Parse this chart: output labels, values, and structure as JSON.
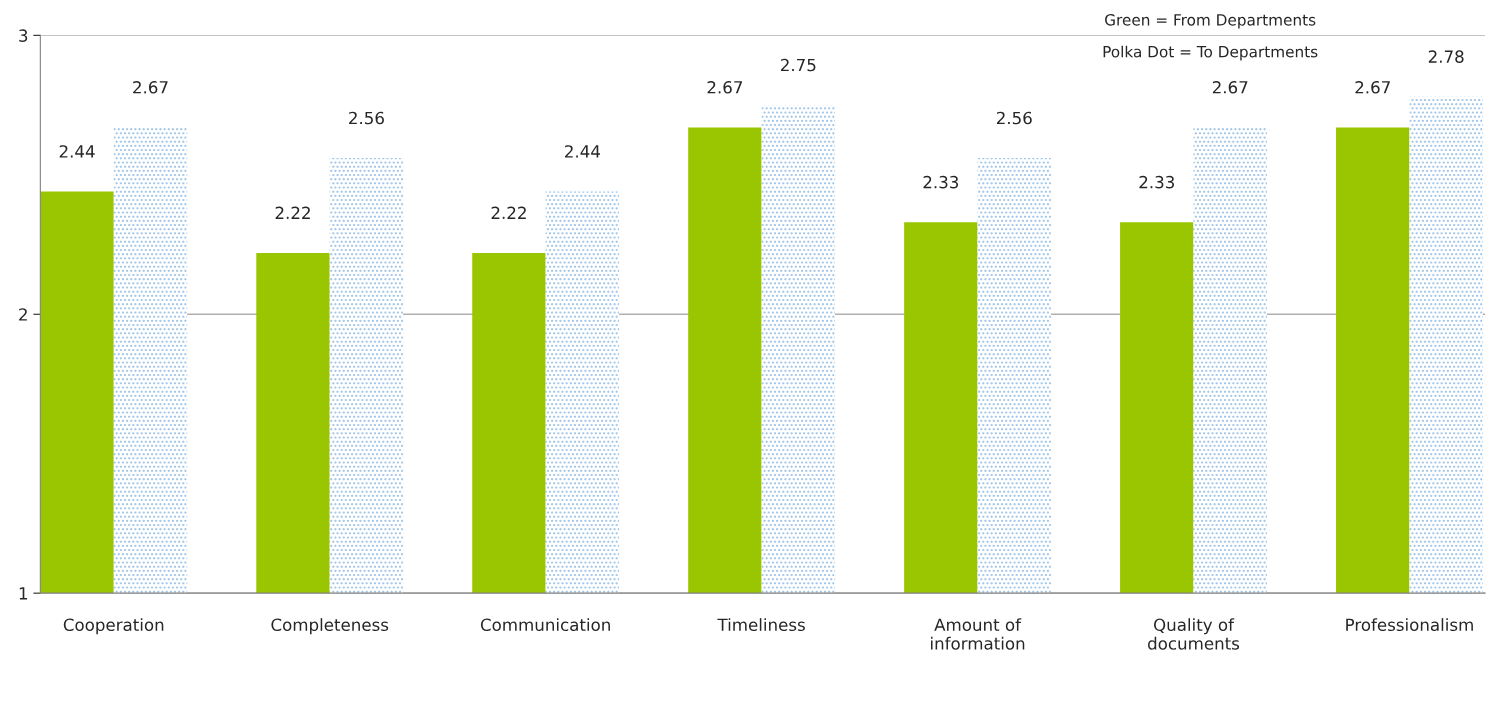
{
  "chart_data": {
    "type": "bar",
    "categories": [
      "Cooperation",
      "Completeness",
      "Communication",
      "Timeliness",
      "Amount of\ninformation",
      "Quality of\ndocuments",
      "Professionalism"
    ],
    "series": [
      {
        "color": "#99c600",
        "values": [
          2.44,
          2.22,
          2.22,
          2.67,
          2.33,
          2.33,
          2.67
        ]
      },
      {
        "color": "#9cc3e6",
        "values": [
          2.67,
          2.56,
          2.44,
          2.75,
          2.56,
          2.67,
          2.78
        ]
      }
    ],
    "ylim": [
      1,
      3
    ],
    "yticks": [
      1,
      2,
      3
    ],
    "grid": "y",
    "data_labels": true,
    "annotations": [
      "Green = From Departments",
      "Polka Dot = To Departments"
    ]
  }
}
